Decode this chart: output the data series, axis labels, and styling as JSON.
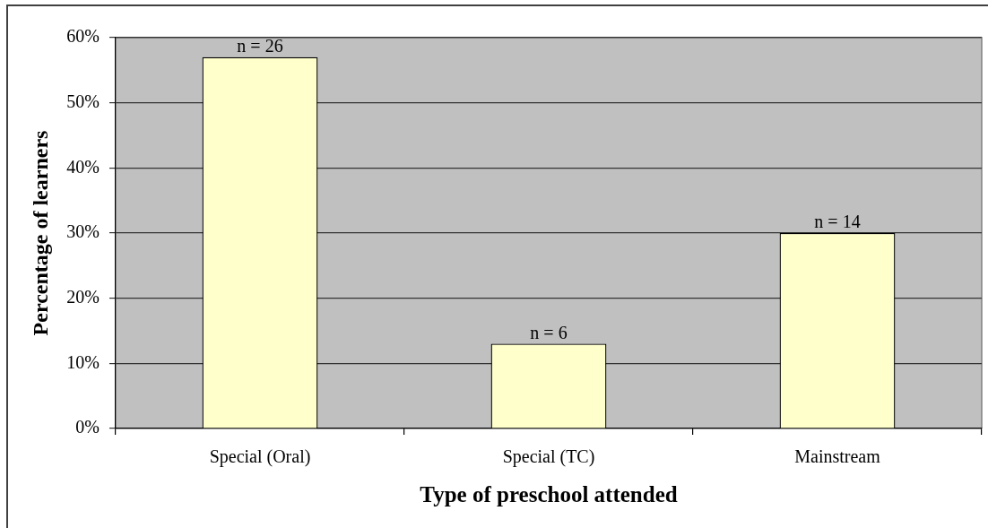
{
  "chart_data": {
    "type": "bar",
    "xlabel": "Type of preschool attended",
    "ylabel": "Percentage of learners",
    "categories": [
      "Special (Oral)",
      "Special (TC)",
      "Mainstream"
    ],
    "values": [
      57,
      13,
      30
    ],
    "color": "#ffffcc",
    "annotations": [
      {
        "text": "n = 26",
        "x": "Special (Oral)",
        "y": 57
      },
      {
        "text": "n = 6",
        "x": "Special (TC)",
        "y": 13
      },
      {
        "text": "n = 14",
        "x": "Mainstream",
        "y": 30
      }
    ],
    "ylim": [
      0,
      60
    ],
    "yticks": [
      {
        "value": 0,
        "label": "0%"
      },
      {
        "value": 10,
        "label": "10%"
      },
      {
        "value": 20,
        "label": "20%"
      },
      {
        "value": 30,
        "label": "30%"
      },
      {
        "value": 40,
        "label": "40%"
      },
      {
        "value": 50,
        "label": "50%"
      },
      {
        "value": 60,
        "label": "60%"
      }
    ],
    "grid": "y"
  }
}
